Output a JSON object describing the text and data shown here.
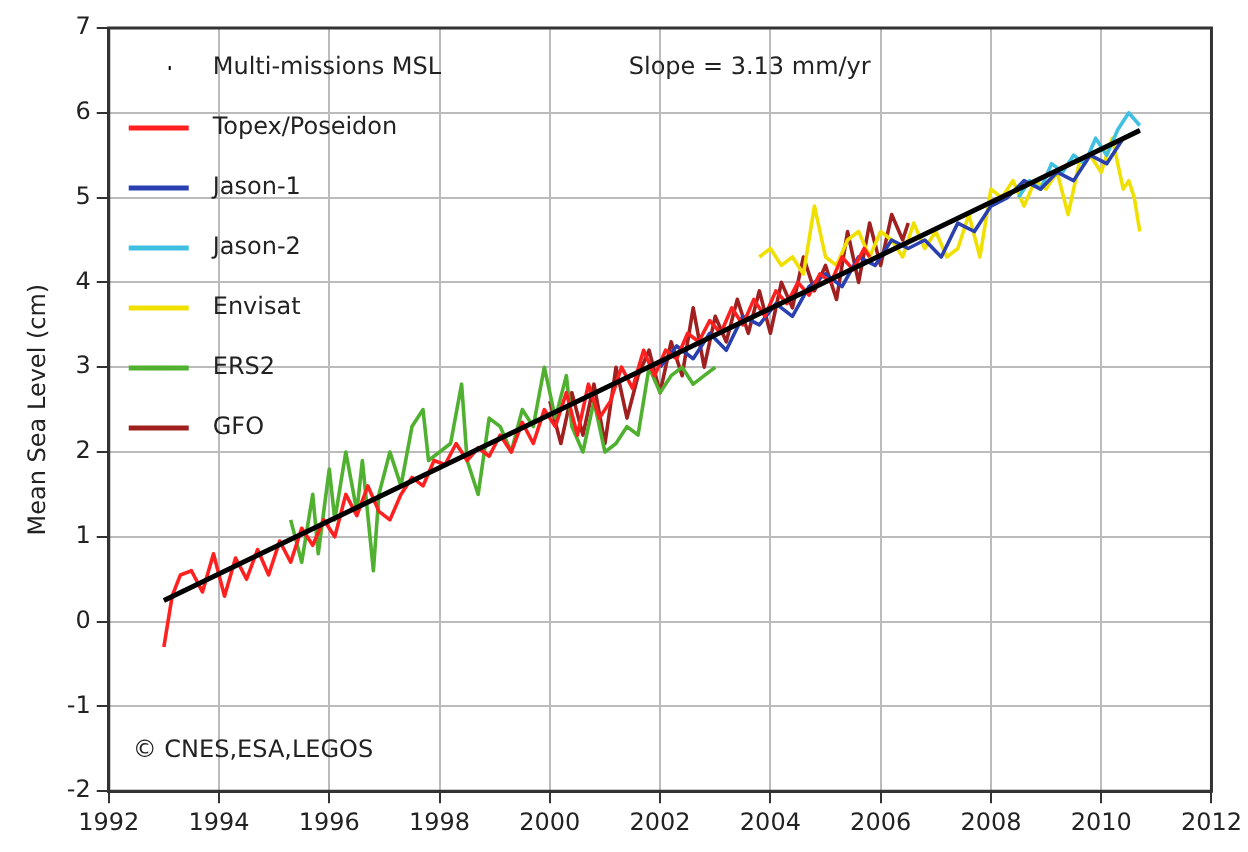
{
  "chart_data": {
    "type": "line",
    "ylabel": "Mean Sea Level (cm)",
    "xlim": [
      1992,
      2012
    ],
    "xticks": [
      1992,
      1994,
      1996,
      1998,
      2000,
      2002,
      2004,
      2006,
      2008,
      2010,
      2012
    ],
    "ylim": [
      -2,
      7
    ],
    "yticks": [
      -2,
      -1,
      0,
      1,
      2,
      3,
      4,
      5,
      6,
      7
    ],
    "grid": true,
    "legend": "top left",
    "marker": "none",
    "line_style": "solid",
    "annotations": [
      "Slope = 3.13 mm/yr",
      "© CNES,ESA,LEGOS"
    ],
    "series": [
      {
        "name": "Multi-missions MSL",
        "color": "#000000",
        "x": [
          1993,
          2010.7
        ],
        "values": [
          0.25,
          5.79
        ]
      },
      {
        "name": "Topex/Poseidon",
        "color": "#ff2020",
        "x": [
          1993.0,
          1993.15,
          1993.3,
          1993.5,
          1993.7,
          1993.9,
          1994.1,
          1994.3,
          1994.5,
          1994.7,
          1994.9,
          1995.1,
          1995.3,
          1995.5,
          1995.7,
          1995.9,
          1996.1,
          1996.3,
          1996.5,
          1996.7,
          1996.9,
          1997.1,
          1997.3,
          1997.5,
          1997.7,
          1997.9,
          1998.1,
          1998.3,
          1998.5,
          1998.7,
          1998.9,
          1999.1,
          1999.3,
          1999.5,
          1999.7,
          1999.9,
          2000.1,
          2000.3,
          2000.5,
          2000.7,
          2000.9,
          2001.1,
          2001.3,
          2001.5,
          2001.7,
          2001.9,
          2002.1,
          2002.3,
          2002.5,
          2002.7,
          2002.9,
          2003.1,
          2003.3,
          2003.5,
          2003.7,
          2003.9,
          2004.1,
          2004.3,
          2004.5,
          2004.7,
          2004.9,
          2005.1,
          2005.3,
          2005.5,
          2005.7,
          2005.8
        ],
        "values": [
          -0.3,
          0.3,
          0.55,
          0.6,
          0.35,
          0.8,
          0.3,
          0.75,
          0.5,
          0.85,
          0.55,
          0.95,
          0.7,
          1.1,
          0.9,
          1.2,
          1.0,
          1.5,
          1.25,
          1.6,
          1.3,
          1.2,
          1.5,
          1.7,
          1.6,
          1.9,
          1.85,
          2.1,
          1.9,
          2.05,
          1.95,
          2.2,
          2.0,
          2.35,
          2.1,
          2.5,
          2.3,
          2.7,
          2.2,
          2.8,
          2.4,
          2.6,
          3.0,
          2.75,
          3.2,
          2.9,
          3.2,
          3.1,
          3.4,
          3.3,
          3.55,
          3.4,
          3.7,
          3.5,
          3.8,
          3.6,
          3.9,
          3.75,
          4.0,
          3.85,
          4.1,
          4.0,
          4.3,
          4.15,
          4.4,
          4.3
        ]
      },
      {
        "name": "Jason-1",
        "color": "#2a3fb0",
        "x": [
          2002.0,
          2002.3,
          2002.6,
          2002.9,
          2003.2,
          2003.5,
          2003.8,
          2004.1,
          2004.4,
          2004.7,
          2005.0,
          2005.3,
          2005.6,
          2005.9,
          2006.2,
          2006.5,
          2006.8,
          2007.1,
          2007.4,
          2007.7,
          2008.0,
          2008.3,
          2008.6,
          2008.9,
          2009.2,
          2009.5,
          2009.8,
          2010.1,
          2010.4,
          2010.7
        ],
        "values": [
          3.0,
          3.25,
          3.1,
          3.4,
          3.2,
          3.6,
          3.5,
          3.75,
          3.6,
          3.95,
          4.1,
          3.95,
          4.3,
          4.2,
          4.5,
          4.4,
          4.5,
          4.3,
          4.7,
          4.6,
          4.9,
          5.0,
          5.2,
          5.1,
          5.3,
          5.2,
          5.5,
          5.4,
          5.7,
          5.8
        ]
      },
      {
        "name": "Jason-2",
        "color": "#40c0e0",
        "x": [
          2008.5,
          2008.7,
          2008.9,
          2009.1,
          2009.3,
          2009.5,
          2009.7,
          2009.9,
          2010.1,
          2010.3,
          2010.5,
          2010.7
        ],
        "values": [
          5.0,
          5.2,
          5.1,
          5.4,
          5.3,
          5.5,
          5.4,
          5.7,
          5.5,
          5.8,
          6.0,
          5.85
        ]
      },
      {
        "name": "Envisat",
        "color": "#f0e000",
        "x": [
          2003.8,
          2004.0,
          2004.2,
          2004.4,
          2004.6,
          2004.8,
          2005.0,
          2005.2,
          2005.4,
          2005.6,
          2005.8,
          2006.0,
          2006.2,
          2006.4,
          2006.6,
          2006.8,
          2007.0,
          2007.2,
          2007.4,
          2007.6,
          2007.8,
          2008.0,
          2008.2,
          2008.4,
          2008.6,
          2008.8,
          2009.0,
          2009.2,
          2009.4,
          2009.6,
          2009.8,
          2010.0,
          2010.2,
          2010.4,
          2010.5,
          2010.6,
          2010.7
        ],
        "values": [
          4.3,
          4.4,
          4.2,
          4.3,
          4.1,
          4.9,
          4.3,
          4.2,
          4.5,
          4.6,
          4.3,
          4.6,
          4.5,
          4.3,
          4.7,
          4.4,
          4.6,
          4.3,
          4.4,
          4.8,
          4.3,
          5.1,
          5.0,
          5.2,
          4.9,
          5.2,
          5.1,
          5.3,
          4.8,
          5.4,
          5.5,
          5.3,
          5.7,
          5.1,
          5.2,
          5.0,
          4.6
        ]
      },
      {
        "name": "ERS2",
        "color": "#50b030",
        "x": [
          1995.3,
          1995.5,
          1995.7,
          1995.8,
          1996.0,
          1996.1,
          1996.3,
          1996.5,
          1996.6,
          1996.8,
          1996.9,
          1997.1,
          1997.3,
          1997.5,
          1997.7,
          1997.8,
          1998.0,
          1998.2,
          1998.4,
          1998.5,
          1998.7,
          1998.9,
          1999.1,
          1999.3,
          1999.5,
          1999.7,
          1999.9,
          2000.1,
          2000.3,
          2000.4,
          2000.6,
          2000.8,
          2001.0,
          2001.2,
          2001.4,
          2001.6,
          2001.8,
          2002.0,
          2002.2,
          2002.4,
          2002.6,
          2002.8,
          2003.0
        ],
        "values": [
          1.2,
          0.7,
          1.5,
          0.8,
          1.8,
          1.2,
          2.0,
          1.3,
          1.9,
          0.6,
          1.5,
          2.0,
          1.6,
          2.3,
          2.5,
          1.9,
          2.0,
          2.1,
          2.8,
          1.9,
          1.5,
          2.4,
          2.3,
          2.0,
          2.5,
          2.3,
          3.0,
          2.4,
          2.9,
          2.3,
          2.0,
          2.6,
          2.0,
          2.1,
          2.3,
          2.2,
          3.0,
          2.7,
          2.9,
          3.0,
          2.8,
          2.9,
          3.0
        ]
      },
      {
        "name": "GFO",
        "color": "#a02020",
        "x": [
          2000.0,
          2000.2,
          2000.4,
          2000.6,
          2000.8,
          2001.0,
          2001.2,
          2001.4,
          2001.6,
          2001.8,
          2002.0,
          2002.2,
          2002.4,
          2002.6,
          2002.8,
          2003.0,
          2003.2,
          2003.4,
          2003.6,
          2003.8,
          2004.0,
          2004.2,
          2004.4,
          2004.6,
          2004.8,
          2005.0,
          2005.2,
          2005.4,
          2005.6,
          2005.8,
          2006.0,
          2006.2,
          2006.4,
          2006.5
        ],
        "values": [
          2.6,
          2.1,
          2.7,
          2.2,
          2.8,
          2.1,
          3.0,
          2.4,
          2.9,
          3.2,
          2.7,
          3.3,
          2.9,
          3.7,
          3.0,
          3.6,
          3.3,
          3.8,
          3.4,
          3.9,
          3.4,
          4.0,
          3.7,
          4.3,
          3.9,
          4.2,
          3.8,
          4.6,
          4.0,
          4.7,
          4.2,
          4.8,
          4.5,
          4.7
        ]
      }
    ]
  }
}
